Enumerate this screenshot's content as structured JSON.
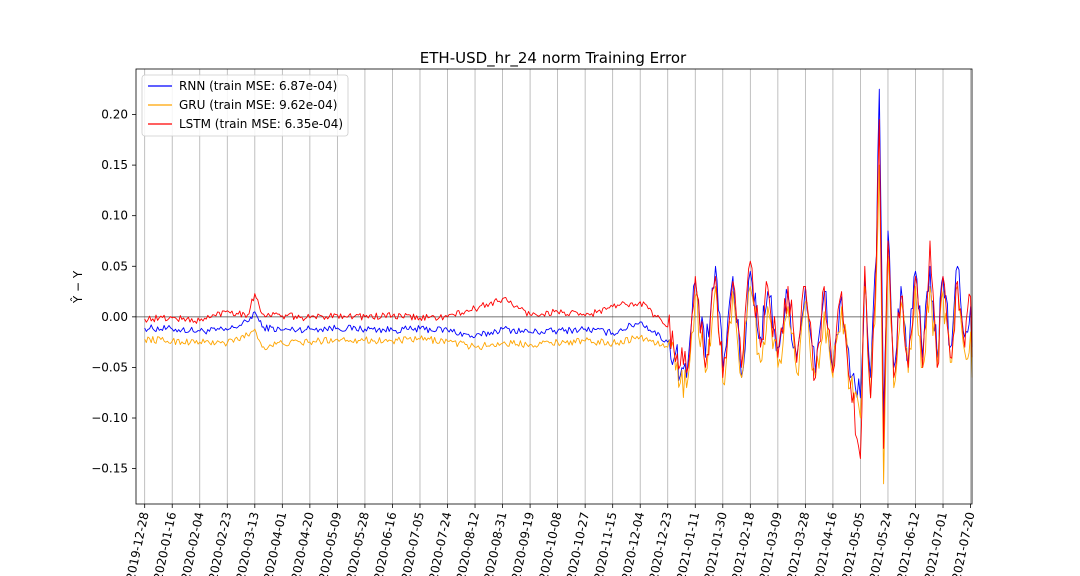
{
  "chart_data": {
    "type": "line",
    "title": "ETH-USD_hr_24 norm Training Error",
    "xlabel": "",
    "ylabel": "Ŷ − Y",
    "ylim": [
      -0.185,
      0.245
    ],
    "xlim": [
      "2019-12-22",
      "2021-07-21"
    ],
    "x_tick_labels": [
      "2019-12-28",
      "2020-01-16",
      "2020-02-04",
      "2020-02-23",
      "2020-03-13",
      "2020-04-01",
      "2020-04-20",
      "2020-05-09",
      "2020-05-28",
      "2020-06-16",
      "2020-07-05",
      "2020-07-24",
      "2020-08-12",
      "2020-08-31",
      "2020-09-19",
      "2020-10-08",
      "2020-10-27",
      "2020-11-15",
      "2020-12-04",
      "2020-12-23",
      "2021-01-11",
      "2021-01-30",
      "2021-02-18",
      "2021-03-09",
      "2021-03-28",
      "2021-04-16",
      "2021-05-05",
      "2021-05-24",
      "2021-06-12",
      "2021-07-01",
      "2021-07-20"
    ],
    "y_ticks": [
      -0.15,
      -0.1,
      -0.05,
      0.0,
      0.05,
      0.1,
      0.15,
      0.2
    ],
    "y_tick_labels": [
      "−0.15",
      "−0.10",
      "−0.05",
      "0.00",
      "0.05",
      "0.10",
      "0.15",
      "0.20"
    ],
    "grid": "vertical",
    "zero_line": true,
    "legend": "upper-left",
    "series": [
      {
        "name": "RNN (train MSE: 6.87e-04)",
        "color": "#0000ff",
        "x": [
          "2019-12-28",
          "2020-01-16",
          "2020-02-04",
          "2020-02-23",
          "2020-03-08",
          "2020-03-13",
          "2020-03-18",
          "2020-04-01",
          "2020-04-20",
          "2020-05-09",
          "2020-05-28",
          "2020-06-16",
          "2020-07-05",
          "2020-07-24",
          "2020-08-12",
          "2020-08-31",
          "2020-09-19",
          "2020-10-08",
          "2020-10-27",
          "2020-11-15",
          "2020-12-04",
          "2020-12-23",
          "2021-01-05",
          "2021-01-11",
          "2021-01-18",
          "2021-01-25",
          "2021-01-30",
          "2021-02-06",
          "2021-02-12",
          "2021-02-18",
          "2021-02-25",
          "2021-03-02",
          "2021-03-09",
          "2021-03-16",
          "2021-03-22",
          "2021-03-28",
          "2021-04-04",
          "2021-04-10",
          "2021-04-16",
          "2021-04-22",
          "2021-04-28",
          "2021-05-05",
          "2021-05-08",
          "2021-05-12",
          "2021-05-16",
          "2021-05-18",
          "2021-05-21",
          "2021-05-24",
          "2021-05-28",
          "2021-06-02",
          "2021-06-07",
          "2021-06-12",
          "2021-06-17",
          "2021-06-22",
          "2021-06-27",
          "2021-07-01",
          "2021-07-06",
          "2021-07-11",
          "2021-07-16",
          "2021-07-20",
          "2021-07-21"
        ],
        "values": [
          -0.011,
          -0.012,
          -0.014,
          -0.013,
          -0.005,
          0.005,
          -0.01,
          -0.013,
          -0.012,
          -0.011,
          -0.012,
          -0.013,
          -0.012,
          -0.013,
          -0.02,
          -0.012,
          -0.015,
          -0.014,
          -0.012,
          -0.016,
          -0.005,
          -0.025,
          -0.06,
          0.035,
          -0.04,
          0.05,
          -0.05,
          0.04,
          -0.06,
          0.045,
          -0.02,
          0.025,
          -0.03,
          0.02,
          -0.04,
          0.03,
          -0.055,
          0.025,
          -0.05,
          0.02,
          -0.06,
          -0.08,
          0.04,
          -0.06,
          0.06,
          0.225,
          -0.1,
          0.085,
          -0.05,
          0.03,
          -0.045,
          0.045,
          -0.04,
          0.05,
          -0.04,
          0.04,
          -0.03,
          0.05,
          -0.02,
          0.01,
          -0.03
        ]
      },
      {
        "name": "GRU (train MSE: 9.62e-04)",
        "color": "#ffa500",
        "x": [
          "2019-12-28",
          "2020-01-16",
          "2020-02-04",
          "2020-02-23",
          "2020-03-08",
          "2020-03-13",
          "2020-03-18",
          "2020-04-01",
          "2020-04-20",
          "2020-05-09",
          "2020-05-28",
          "2020-06-16",
          "2020-07-05",
          "2020-07-24",
          "2020-08-12",
          "2020-08-31",
          "2020-09-19",
          "2020-10-08",
          "2020-10-27",
          "2020-11-15",
          "2020-12-04",
          "2020-12-23",
          "2021-01-05",
          "2021-01-11",
          "2021-01-18",
          "2021-01-25",
          "2021-01-30",
          "2021-02-06",
          "2021-02-12",
          "2021-02-18",
          "2021-02-25",
          "2021-03-02",
          "2021-03-09",
          "2021-03-16",
          "2021-03-22",
          "2021-03-28",
          "2021-04-04",
          "2021-04-10",
          "2021-04-16",
          "2021-04-22",
          "2021-04-28",
          "2021-05-05",
          "2021-05-08",
          "2021-05-12",
          "2021-05-16",
          "2021-05-18",
          "2021-05-21",
          "2021-05-24",
          "2021-05-28",
          "2021-06-02",
          "2021-06-07",
          "2021-06-12",
          "2021-06-17",
          "2021-06-22",
          "2021-06-27",
          "2021-07-01",
          "2021-07-06",
          "2021-07-11",
          "2021-07-16",
          "2021-07-20",
          "2021-07-21"
        ],
        "values": [
          -0.022,
          -0.024,
          -0.025,
          -0.026,
          -0.018,
          -0.012,
          -0.03,
          -0.026,
          -0.025,
          -0.022,
          -0.023,
          -0.024,
          -0.022,
          -0.024,
          -0.03,
          -0.026,
          -0.027,
          -0.025,
          -0.024,
          -0.026,
          -0.02,
          -0.03,
          -0.07,
          0.02,
          -0.055,
          0.03,
          -0.065,
          0.025,
          -0.06,
          0.03,
          -0.045,
          0.01,
          -0.05,
          0.01,
          -0.055,
          0.015,
          -0.06,
          0.005,
          -0.06,
          0.01,
          -0.07,
          -0.1,
          0.03,
          -0.08,
          0.04,
          0.15,
          -0.165,
          0.06,
          -0.07,
          0.015,
          -0.055,
          0.03,
          -0.05,
          0.03,
          -0.05,
          0.025,
          -0.045,
          0.03,
          -0.035,
          -0.015,
          -0.06
        ]
      },
      {
        "name": "LSTM (train MSE: 6.35e-04)",
        "color": "#ff0000",
        "x": [
          "2019-12-28",
          "2020-01-16",
          "2020-02-04",
          "2020-02-23",
          "2020-03-08",
          "2020-03-13",
          "2020-03-18",
          "2020-04-01",
          "2020-04-20",
          "2020-05-09",
          "2020-05-28",
          "2020-06-16",
          "2020-07-05",
          "2020-07-24",
          "2020-08-12",
          "2020-08-31",
          "2020-09-19",
          "2020-10-08",
          "2020-10-27",
          "2020-11-15",
          "2020-12-04",
          "2020-12-23",
          "2021-01-05",
          "2021-01-11",
          "2021-01-18",
          "2021-01-25",
          "2021-01-30",
          "2021-02-06",
          "2021-02-12",
          "2021-02-18",
          "2021-02-25",
          "2021-03-02",
          "2021-03-09",
          "2021-03-16",
          "2021-03-22",
          "2021-03-28",
          "2021-04-04",
          "2021-04-10",
          "2021-04-16",
          "2021-04-22",
          "2021-04-28",
          "2021-05-05",
          "2021-05-08",
          "2021-05-12",
          "2021-05-16",
          "2021-05-18",
          "2021-05-21",
          "2021-05-24",
          "2021-05-28",
          "2021-06-02",
          "2021-06-07",
          "2021-06-12",
          "2021-06-17",
          "2021-06-22",
          "2021-06-27",
          "2021-07-01",
          "2021-07-06",
          "2021-07-11",
          "2021-07-16",
          "2021-07-20",
          "2021-07-21"
        ],
        "values": [
          -0.002,
          -0.001,
          -0.004,
          0.006,
          0.002,
          0.023,
          0.003,
          0.001,
          -0.001,
          0.002,
          0.0,
          0.001,
          -0.001,
          0.0,
          0.008,
          0.018,
          0.002,
          0.005,
          0.001,
          0.01,
          0.015,
          -0.01,
          -0.055,
          0.04,
          -0.05,
          0.04,
          -0.06,
          0.035,
          -0.05,
          0.055,
          -0.03,
          0.03,
          -0.04,
          0.03,
          -0.045,
          0.03,
          -0.06,
          0.03,
          -0.055,
          0.025,
          -0.065,
          -0.14,
          0.05,
          -0.08,
          0.06,
          0.195,
          -0.13,
          0.075,
          -0.06,
          0.02,
          -0.05,
          0.04,
          -0.05,
          0.075,
          -0.05,
          0.04,
          -0.04,
          0.035,
          -0.03,
          0.02,
          -0.04
        ]
      }
    ]
  }
}
